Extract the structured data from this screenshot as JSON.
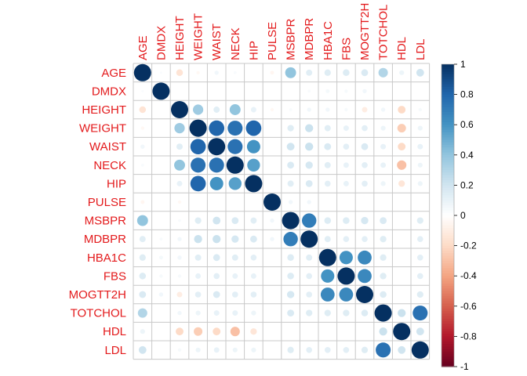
{
  "chart_data": {
    "type": "heatmap",
    "title": "",
    "variables": [
      "AGE",
      "DMDX",
      "HEIGHT",
      "WEIGHT",
      "WAIST",
      "NECK",
      "HIP",
      "PULSE",
      "MSBPR",
      "MDBPR",
      "HBA1C",
      "FBS",
      "MOGTT2H",
      "TOTCHOL",
      "HDL",
      "LDL"
    ],
    "matrix": [
      [
        1.0,
        0.02,
        -0.15,
        -0.04,
        0.06,
        0.03,
        0.0,
        -0.05,
        0.4,
        0.13,
        0.14,
        0.15,
        0.16,
        0.3,
        0.08,
        0.2
      ],
      [
        0.02,
        1.0,
        0.0,
        0.0,
        0.0,
        0.0,
        0.0,
        0.0,
        0.0,
        0.03,
        0.05,
        0.04,
        0.06,
        0.0,
        0.0,
        0.0
      ],
      [
        -0.15,
        0.0,
        1.0,
        0.36,
        0.13,
        0.4,
        0.1,
        -0.04,
        0.03,
        0.06,
        0.06,
        0.04,
        -0.1,
        0.06,
        -0.2,
        0.04
      ],
      [
        -0.04,
        0.0,
        0.36,
        1.0,
        0.8,
        0.75,
        0.8,
        0.0,
        0.14,
        0.22,
        0.13,
        0.1,
        0.12,
        0.08,
        -0.25,
        0.08
      ],
      [
        0.06,
        0.0,
        0.13,
        0.8,
        1.0,
        0.75,
        0.6,
        0.0,
        0.2,
        0.22,
        0.16,
        0.12,
        0.16,
        0.1,
        -0.2,
        0.1
      ],
      [
        0.03,
        0.0,
        0.4,
        0.75,
        0.75,
        1.0,
        0.55,
        0.0,
        0.16,
        0.18,
        0.13,
        0.1,
        0.12,
        0.1,
        -0.3,
        0.08
      ],
      [
        0.0,
        0.0,
        0.1,
        0.8,
        0.6,
        0.55,
        1.0,
        0.0,
        0.13,
        0.16,
        0.12,
        0.1,
        0.12,
        0.08,
        -0.14,
        0.08
      ],
      [
        -0.05,
        0.0,
        -0.04,
        0.0,
        0.0,
        0.0,
        0.0,
        1.0,
        0.06,
        0.06,
        0.0,
        0.0,
        0.0,
        0.0,
        0.0,
        0.0
      ],
      [
        0.4,
        0.0,
        0.03,
        0.14,
        0.2,
        0.16,
        0.13,
        0.06,
        1.0,
        0.7,
        0.15,
        0.15,
        0.18,
        0.16,
        0.0,
        0.14
      ],
      [
        0.13,
        0.03,
        0.06,
        0.22,
        0.22,
        0.18,
        0.16,
        0.06,
        0.7,
        1.0,
        0.13,
        0.12,
        0.12,
        0.14,
        0.0,
        0.12
      ],
      [
        0.14,
        0.05,
        0.06,
        0.13,
        0.16,
        0.13,
        0.12,
        0.0,
        0.15,
        0.13,
        1.0,
        0.6,
        0.65,
        0.14,
        0.0,
        0.12
      ],
      [
        0.15,
        0.04,
        0.04,
        0.1,
        0.12,
        0.1,
        0.1,
        0.0,
        0.15,
        0.12,
        0.6,
        1.0,
        0.65,
        0.14,
        0.0,
        0.12
      ],
      [
        0.16,
        0.06,
        -0.1,
        0.12,
        0.16,
        0.12,
        0.12,
        0.0,
        0.18,
        0.12,
        0.65,
        0.65,
        1.0,
        0.15,
        0.0,
        0.14
      ],
      [
        0.3,
        0.0,
        0.06,
        0.08,
        0.1,
        0.1,
        0.08,
        0.0,
        0.16,
        0.14,
        0.14,
        0.14,
        0.15,
        1.0,
        0.22,
        0.75
      ],
      [
        0.08,
        0.0,
        -0.2,
        -0.25,
        -0.2,
        -0.3,
        -0.14,
        0.0,
        0.0,
        0.0,
        0.0,
        0.0,
        0.0,
        0.22,
        1.0,
        0.2
      ],
      [
        0.2,
        0.0,
        0.04,
        0.08,
        0.1,
        0.08,
        0.08,
        0.0,
        0.14,
        0.12,
        0.12,
        0.12,
        0.14,
        0.75,
        0.2,
        1.0
      ]
    ],
    "color_scale": {
      "min": -1,
      "max": 1,
      "ticks": [
        -1,
        -0.8,
        -0.6,
        -0.4,
        -0.2,
        0,
        0.2,
        0.4,
        0.6,
        0.8,
        1
      ],
      "tick_labels": [
        "-1",
        "-0.8",
        "-0.6",
        "-0.4",
        "-0.2",
        "0",
        "0.2",
        "0.4",
        "0.6",
        "0.8",
        "1"
      ],
      "stops": [
        "#67001f",
        "#b2182b",
        "#d6604d",
        "#f4a582",
        "#fddbc7",
        "#ffffff",
        "#d1e5f0",
        "#92c5de",
        "#4393c3",
        "#2166ac",
        "#053061"
      ]
    },
    "marker": "circle",
    "label_color": "#e31a1c",
    "grid": true,
    "legend_placement": "right"
  }
}
